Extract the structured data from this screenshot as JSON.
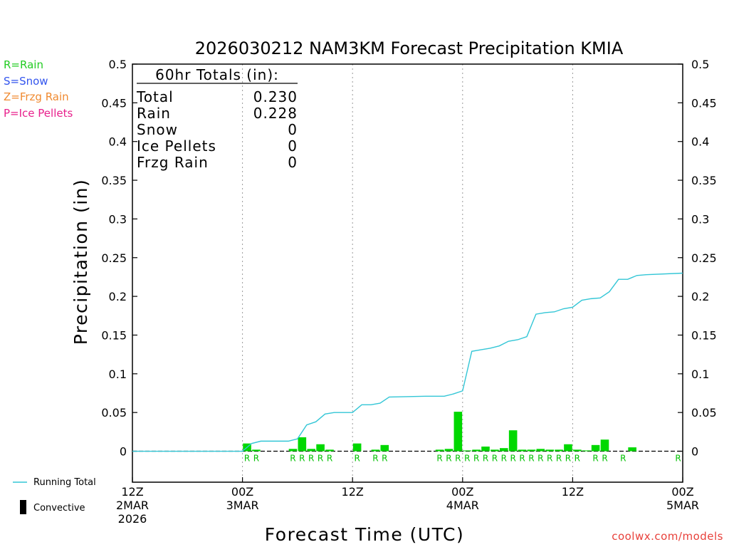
{
  "chart_data": {
    "type": "bar",
    "title": "2026030212 NAM3KM Forecast Precipitation KMIA",
    "xlabel": "Forecast Time (UTC)",
    "ylabel": "Precipitation (in)",
    "ylim": [
      -0.04,
      0.5
    ],
    "yticks": [
      "0.5",
      "0.45",
      "0.4",
      "0.35",
      "0.3",
      "0.25",
      "0.2",
      "0.15",
      "0.1",
      "0.05",
      "0"
    ],
    "xlim_hours": [
      0,
      60
    ],
    "xticks": [
      {
        "hour": 0,
        "lines": [
          "12Z",
          "2MAR",
          "2026"
        ]
      },
      {
        "hour": 12,
        "lines": [
          "00Z",
          "3MAR"
        ]
      },
      {
        "hour": 24,
        "lines": [
          "12Z"
        ]
      },
      {
        "hour": 36,
        "lines": [
          "00Z",
          "4MAR"
        ]
      },
      {
        "hour": 48,
        "lines": [
          "12Z"
        ]
      },
      {
        "hour": 60,
        "lines": [
          "00Z",
          "5MAR"
        ]
      }
    ],
    "grid_hours": [
      12,
      24,
      36,
      48
    ],
    "bar_color": "#00d800",
    "line_color": "#33c6d6",
    "hourly_precip": {
      "hour": [
        13,
        14,
        18,
        19,
        20,
        21,
        22,
        25,
        27,
        28,
        34,
        35,
        36,
        37,
        38,
        39,
        40,
        41,
        42,
        43,
        44,
        45,
        46,
        47,
        48,
        49,
        50,
        51,
        52,
        55
      ],
      "value": [
        0.01,
        0.002,
        0.003,
        0.018,
        0.003,
        0.009,
        0.002,
        0.01,
        0.002,
        0.008,
        0.002,
        0.003,
        0.051,
        0.001,
        0.002,
        0.006,
        0.002,
        0.004,
        0.027,
        0.002,
        0.002,
        0.003,
        0.002,
        0.002,
        0.009,
        0.002,
        0.001,
        0.008,
        0.015,
        0.005
      ]
    },
    "ptype_markers": {
      "hours": [
        13,
        14,
        18,
        19,
        20,
        21,
        22,
        25,
        27,
        28,
        34,
        35,
        36,
        37,
        38,
        39,
        40,
        41,
        42,
        43,
        44,
        45,
        46,
        47,
        48,
        49,
        51,
        52,
        54,
        60
      ],
      "label": "R",
      "color": "#00c000"
    },
    "running_total": {
      "hour": [
        0,
        12,
        13,
        14,
        17,
        18,
        19,
        20,
        21,
        22,
        23,
        24,
        25,
        26,
        27,
        28,
        32,
        34,
        35,
        36,
        37,
        38,
        39,
        40,
        41,
        42,
        43,
        44,
        45,
        46,
        47,
        48,
        49,
        50,
        51,
        52,
        53,
        54,
        55,
        56,
        60
      ],
      "value": [
        0,
        0,
        0.01,
        0.013,
        0.013,
        0.016,
        0.034,
        0.038,
        0.048,
        0.05,
        0.05,
        0.05,
        0.06,
        0.06,
        0.062,
        0.07,
        0.071,
        0.071,
        0.074,
        0.078,
        0.129,
        0.131,
        0.133,
        0.136,
        0.142,
        0.144,
        0.148,
        0.177,
        0.179,
        0.18,
        0.184,
        0.186,
        0.195,
        0.197,
        0.198,
        0.206,
        0.222,
        0.222,
        0.227,
        0.228,
        0.23
      ]
    },
    "totals_box": {
      "header": "60hr Totals (in):",
      "rows": [
        {
          "label": "Total",
          "value": "0.230"
        },
        {
          "label": "Rain",
          "value": "0.228"
        },
        {
          "label": "Snow",
          "value": "0"
        },
        {
          "label": "Ice Pellets",
          "value": "0"
        },
        {
          "label": "Frzg Rain",
          "value": "0"
        }
      ]
    },
    "precip_type_legend": [
      {
        "text": "R=Rain",
        "color": "#22cc22"
      },
      {
        "text": "S=Snow",
        "color": "#3355ee"
      },
      {
        "text": "Z=Frzg Rain",
        "color": "#f08a30"
      },
      {
        "text": "P=Ice Pellets",
        "color": "#e8208c"
      }
    ],
    "key": {
      "running_total_label": "Running Total",
      "convective_label": "Convective"
    },
    "credit": "coolwx.com/models"
  }
}
